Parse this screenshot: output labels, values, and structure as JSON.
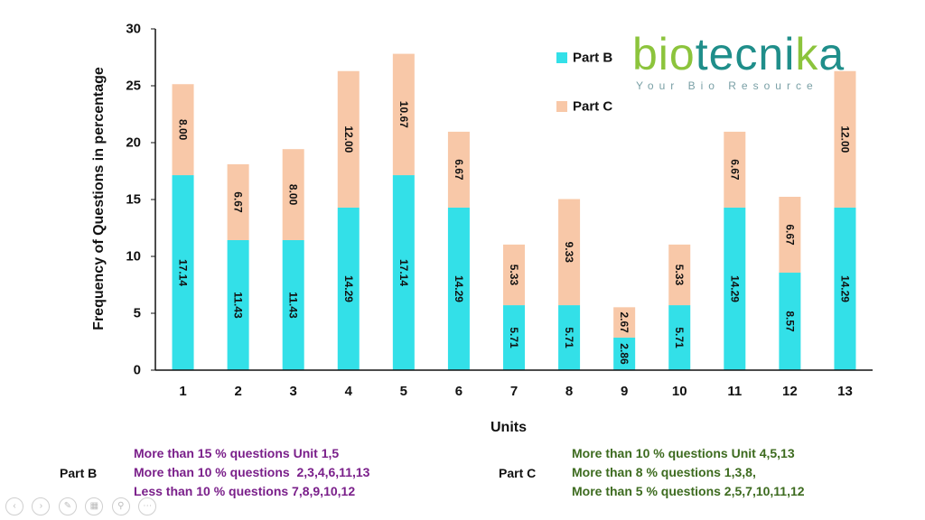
{
  "chart_data": {
    "type": "bar",
    "stacked": true,
    "categories": [
      "1",
      "2",
      "3",
      "4",
      "5",
      "6",
      "7",
      "8",
      "9",
      "10",
      "11",
      "12",
      "13"
    ],
    "series": [
      {
        "name": "Part B",
        "color": "#33e0e8",
        "values": [
          17.14,
          11.43,
          11.43,
          14.29,
          17.14,
          14.29,
          5.71,
          5.71,
          2.86,
          5.71,
          14.29,
          8.57,
          14.29
        ]
      },
      {
        "name": "Part C",
        "color": "#f8c8a8",
        "values": [
          8.0,
          6.67,
          8.0,
          12.0,
          10.67,
          6.67,
          5.33,
          9.33,
          2.67,
          5.33,
          6.67,
          6.67,
          12.0
        ]
      }
    ],
    "data_labels": {
      "Part B": [
        "17.14",
        "11.43",
        "11.43",
        "14.29",
        "17.14",
        "14.29",
        "5.71",
        "5.71",
        "2.86",
        "5.71",
        "14.29",
        "8.57",
        "14.29"
      ],
      "Part C": [
        "8.00",
        "6.67",
        "8.00",
        "12.00",
        "10.67",
        "6.67",
        "5.33",
        "9.33",
        "2.67",
        "5.33",
        "6.67",
        "6.67",
        "12.00"
      ]
    },
    "xlabel": "Units",
    "ylabel": "Frequency of Questions in  percentage",
    "ylim": [
      0,
      30
    ],
    "yticks": [
      0,
      5,
      10,
      15,
      20,
      25,
      30
    ],
    "grid": false,
    "legend": "top-right"
  },
  "logo": {
    "word_green_1": "bio",
    "word_teal": "tecni",
    "word_green_2": "k",
    "word_teal_2": "a",
    "tagline": "Your Bio Resource"
  },
  "notes": {
    "part_b_label": "Part B",
    "part_b_lines": [
      "More than 15 % questions Unit 1,5",
      "More than 10 % questions  2,3,4,6,11,13",
      "Less than 10 % questions 7,8,9,10,12"
    ],
    "part_b_color": "#7a1f8a",
    "part_c_label": "Part C",
    "part_c_lines": [
      "More than 10 % questions Unit 4,5,13",
      "More than 8 % questions 1,3,8,",
      "More than 5 % questions 2,5,7,10,11,12"
    ],
    "part_c_color": "#3d6b1f"
  }
}
